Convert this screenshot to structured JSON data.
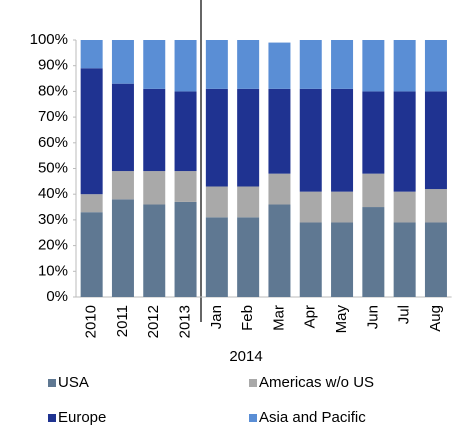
{
  "chart_data": {
    "type": "stacked_bar",
    "categories": [
      "2010",
      "2011",
      "2012",
      "2013",
      "Jan",
      "Feb",
      "Mar",
      "Apr",
      "May",
      "Jun",
      "Jul",
      "Aug"
    ],
    "group_label": "2014",
    "series": [
      {
        "name": "USA",
        "color": "#5f7892",
        "values": [
          33,
          38,
          36,
          37,
          31,
          31,
          36,
          29,
          29,
          35,
          29,
          29
        ]
      },
      {
        "name": "Americas w/o US",
        "color": "#a9a9a9",
        "values": [
          7,
          11,
          13,
          12,
          12,
          12,
          12,
          12,
          12,
          13,
          12,
          13
        ]
      },
      {
        "name": "Europe",
        "color": "#1f3391",
        "values": [
          49,
          34,
          32,
          31,
          38,
          38,
          33,
          40,
          40,
          32,
          39,
          38
        ]
      },
      {
        "name": "Asia and Pacific",
        "color": "#5a8ed5",
        "values": [
          11,
          17,
          19,
          20,
          19,
          19,
          18,
          19,
          19,
          20,
          20,
          20
        ]
      }
    ],
    "ylim": [
      0,
      100
    ],
    "yticks": [
      {
        "value": 0,
        "label": "0%"
      },
      {
        "value": 10,
        "label": "10%"
      },
      {
        "value": 20,
        "label": "20%"
      },
      {
        "value": 30,
        "label": "30%"
      },
      {
        "value": 40,
        "label": "40%"
      },
      {
        "value": 50,
        "label": "50%"
      },
      {
        "value": 60,
        "label": "60%"
      },
      {
        "value": 70,
        "label": "70%"
      },
      {
        "value": 80,
        "label": "80%"
      },
      {
        "value": 90,
        "label": "90%"
      },
      {
        "value": 100,
        "label": "100%"
      }
    ],
    "legend": "bottom"
  }
}
